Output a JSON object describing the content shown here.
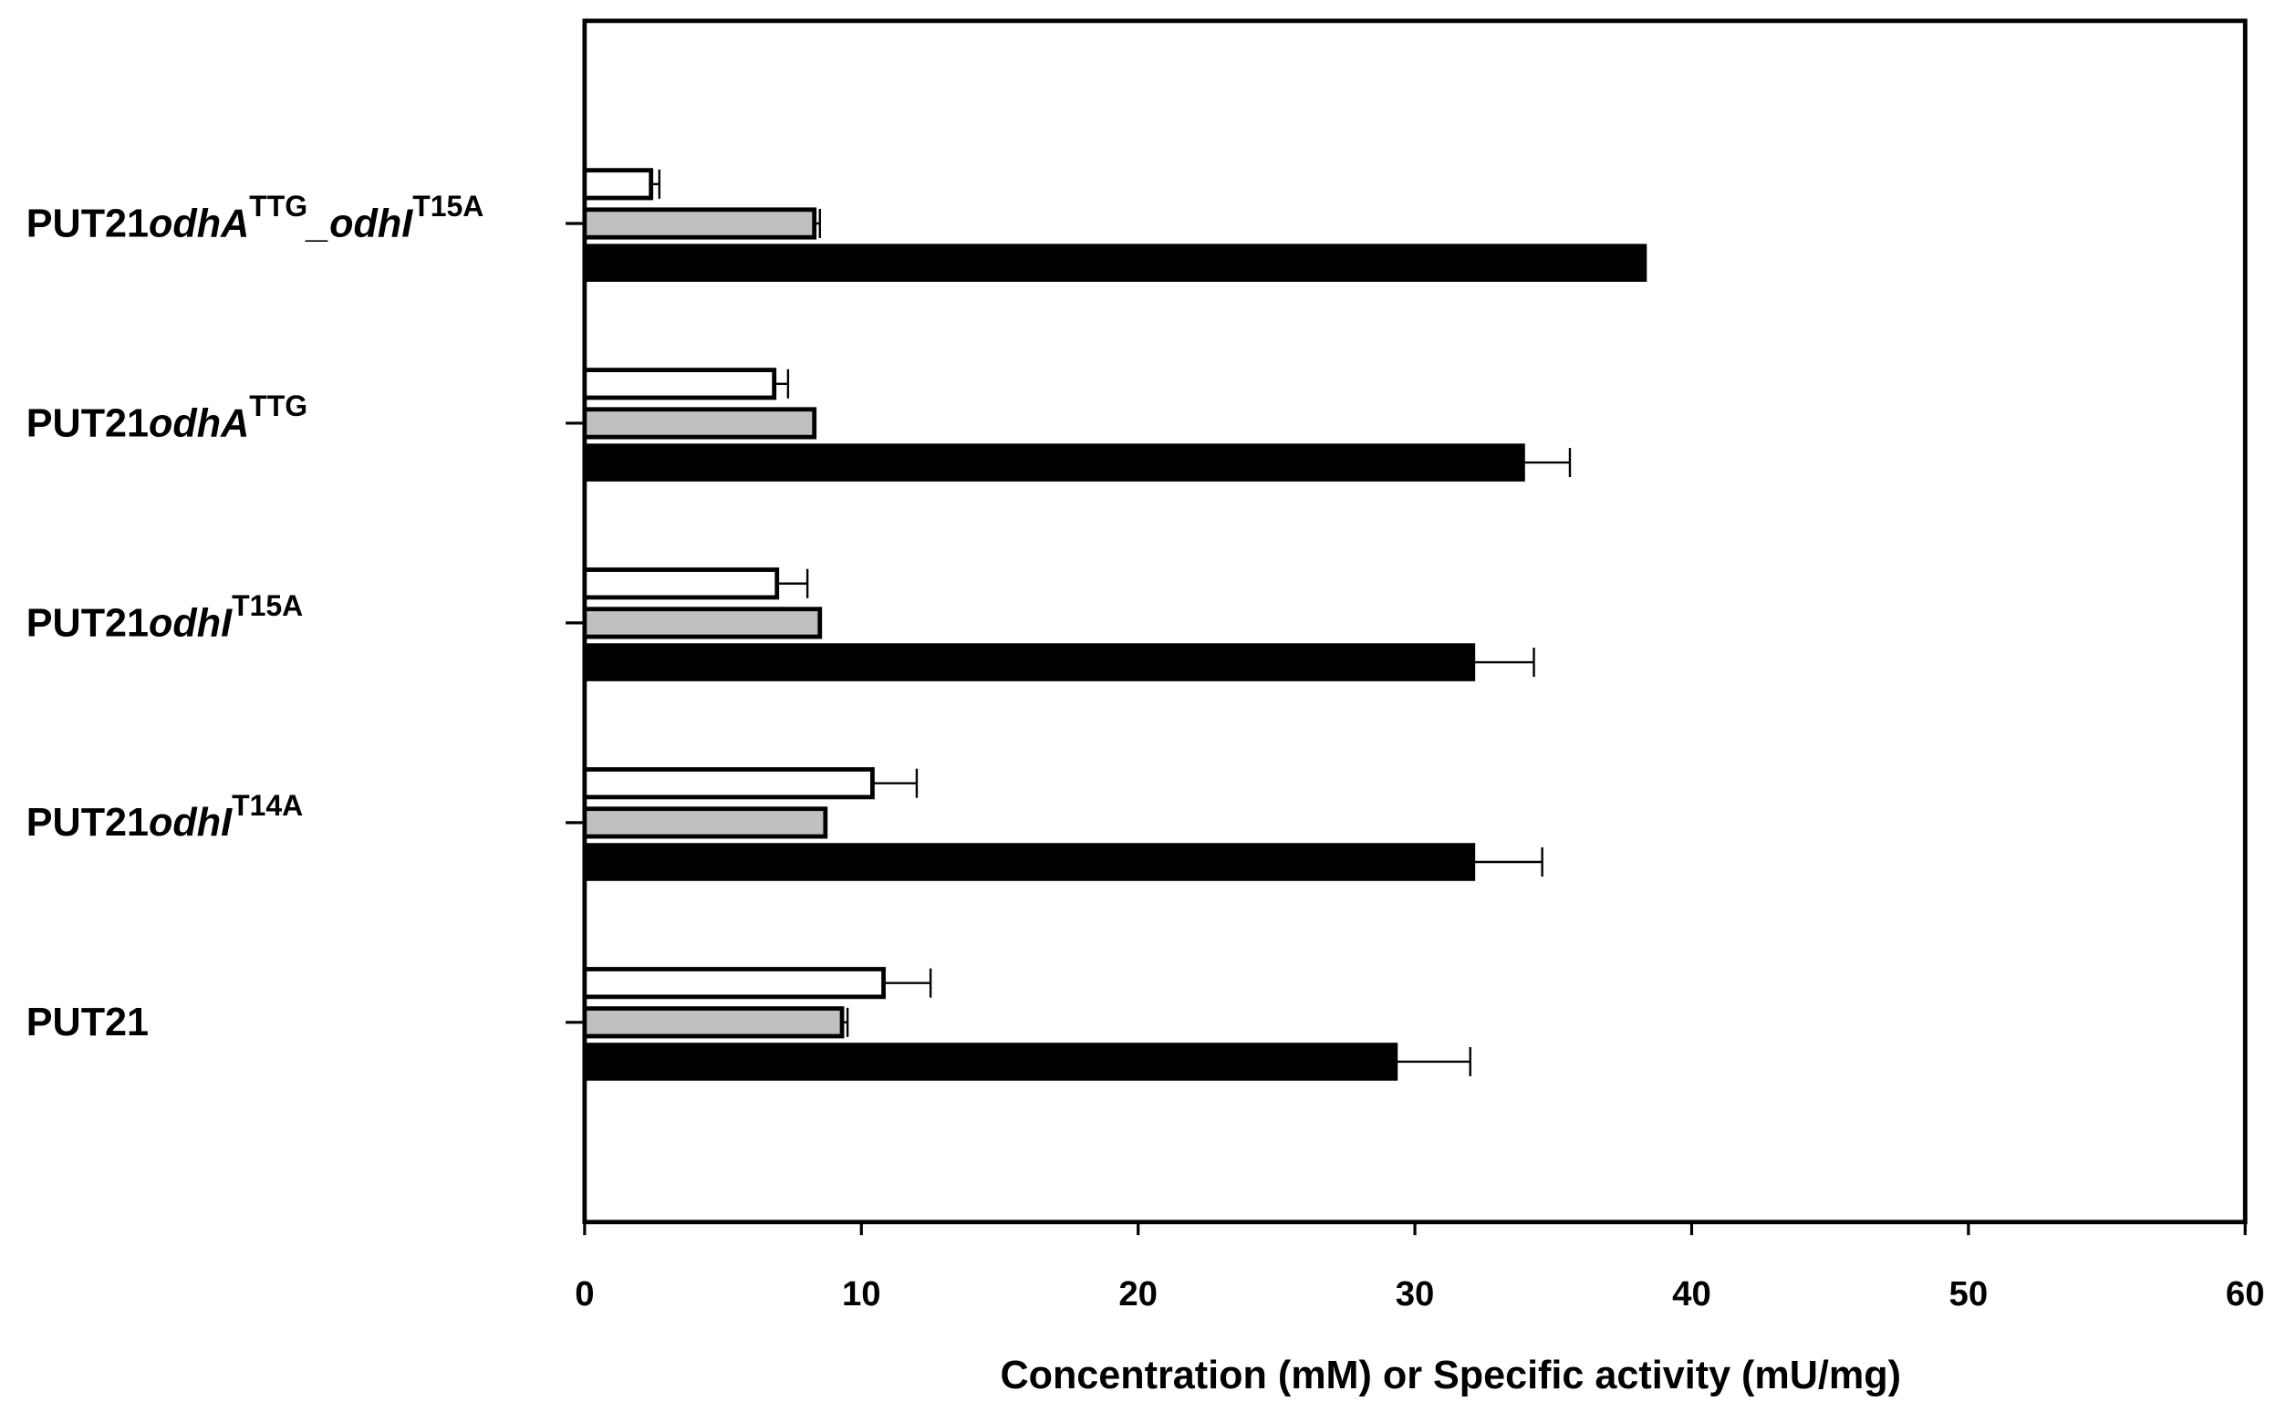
{
  "chart_data": {
    "type": "hbar",
    "xlabel": "Concentration (mM) or Specific activity (mU/mg)",
    "categories": [
      [
        "PUT21"
      ],
      [
        "PUT21",
        "odhI",
        "T14A"
      ],
      [
        "PUT21",
        "odhI",
        "T15A"
      ],
      [
        "PUT21",
        "odhA",
        "TTG"
      ],
      [
        "PUT21",
        "odhA",
        "TTG",
        "_odhI",
        "T15A"
      ]
    ],
    "series": [
      {
        "color": "#ffffff",
        "values": [
          10.8,
          10.4,
          6.95,
          6.85,
          2.4
        ],
        "errors": [
          1.7,
          1.6,
          1.1,
          0.5,
          0.3
        ]
      },
      {
        "color": "#c0c0c0",
        "values": [
          9.3,
          8.7,
          8.5,
          8.3,
          8.3
        ],
        "errors": [
          0.2,
          0,
          0,
          0,
          0.2
        ]
      },
      {
        "color": "#000000",
        "values": [
          29.3,
          32.1,
          32.1,
          33.9,
          38.3
        ],
        "errors": [
          2.7,
          2.5,
          2.2,
          1.7,
          0
        ]
      }
    ],
    "xlim": [
      0,
      60
    ],
    "xticks": [
      0,
      10,
      20,
      30,
      40,
      50,
      60
    ]
  }
}
